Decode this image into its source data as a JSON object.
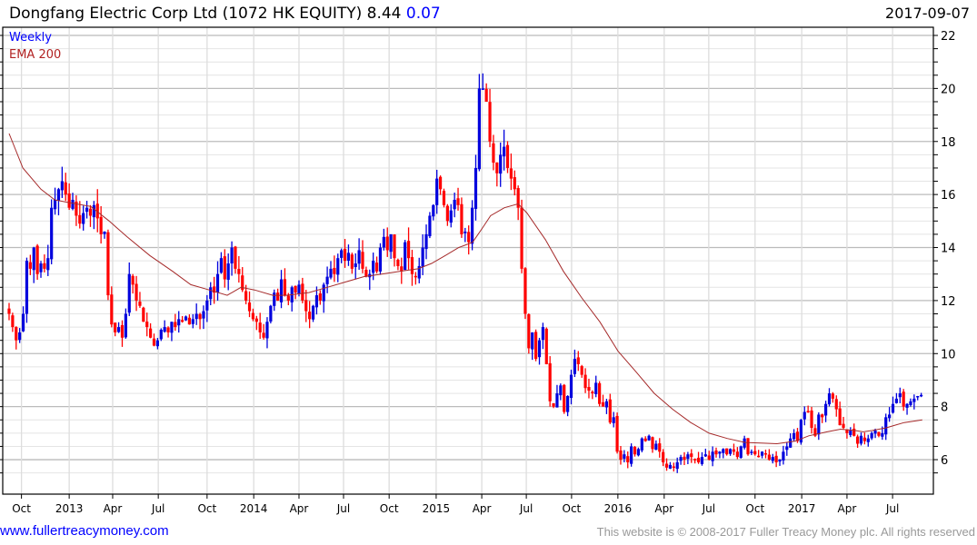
{
  "header": {
    "title": "Dongfang Electric Corp Ltd (1072 HK EQUITY) 8.44",
    "change": "0.07",
    "date": "2017-09-07"
  },
  "footer": {
    "link": "www.fullertreacymoney.com",
    "copyright": "This website is © 2008-2017 Fuller Treacy Money plc. All rights reserved"
  },
  "colors": {
    "up": "#0000dd",
    "down": "#ff0000",
    "ema": "#a52a2a",
    "legend_weekly": "#0000ff",
    "legend_ema": "#b22222"
  },
  "chart_data": {
    "type": "candlestick",
    "title": "Dongfang Electric Corp Ltd (1072 HK EQUITY)",
    "legend": [
      "Weekly",
      "EMA 200"
    ],
    "legend_placement": "top-left",
    "ylim": [
      5,
      22.3
    ],
    "yticks": [
      6,
      8,
      10,
      12,
      14,
      16,
      18,
      20,
      22
    ],
    "xtick_labels": [
      {
        "week": 3.5,
        "label": "Oct"
      },
      {
        "week": 17,
        "label": "2013"
      },
      {
        "week": 29.3,
        "label": "Apr"
      },
      {
        "week": 42.2,
        "label": "Jul"
      },
      {
        "week": 56,
        "label": "Oct"
      },
      {
        "week": 69.2,
        "label": "2014"
      },
      {
        "week": 82,
        "label": "Apr"
      },
      {
        "week": 94.6,
        "label": "Jul"
      },
      {
        "week": 107.5,
        "label": "Oct"
      },
      {
        "week": 120.8,
        "label": "2015"
      },
      {
        "week": 133.7,
        "label": "Apr"
      },
      {
        "week": 146.3,
        "label": "Jul"
      },
      {
        "week": 159.1,
        "label": "Oct"
      },
      {
        "week": 172.2,
        "label": "2016"
      },
      {
        "week": 185.3,
        "label": "Apr"
      },
      {
        "week": 197.9,
        "label": "Jul"
      },
      {
        "week": 211,
        "label": "Oct"
      },
      {
        "week": 224.2,
        "label": "2017"
      },
      {
        "week": 237,
        "label": "Apr"
      },
      {
        "week": 249.9,
        "label": "Jul"
      }
    ],
    "weekly_close": [
      11.5,
      11.0,
      10.5,
      10.8,
      11.5,
      13.5,
      13.2,
      14.0,
      13.0,
      13.4,
      13.2,
      13.6,
      15.5,
      15.8,
      16.2,
      16.5,
      16.0,
      15.5,
      15.8,
      15.2,
      14.9,
      15.3,
      15.5,
      15.2,
      15.6,
      15.1,
      14.5,
      14.6,
      12.2,
      11.1,
      10.8,
      11.0,
      10.6,
      11.5,
      13.0,
      12.6,
      12.0,
      11.8,
      11.2,
      11.0,
      10.6,
      10.3,
      10.5,
      10.9,
      11.0,
      10.8,
      11.2,
      11.0,
      11.3,
      11.2,
      11.4,
      11.1,
      11.3,
      11.5,
      11.3,
      11.6,
      12.0,
      12.5,
      12.3,
      13.0,
      13.6,
      12.8,
      13.4,
      14.0,
      13.2,
      13.0,
      12.4,
      12.0,
      11.6,
      11.3,
      11.2,
      10.8,
      10.6,
      11.2,
      11.8,
      12.3,
      12.0,
      12.8,
      12.2,
      12.0,
      12.5,
      12.3,
      12.6,
      12.0,
      11.6,
      11.3,
      11.8,
      12.2,
      12.0,
      12.6,
      12.9,
      13.2,
      13.0,
      13.6,
      13.9,
      13.5,
      13.8,
      13.2,
      13.4,
      13.9,
      13.2,
      12.9,
      13.0,
      13.5,
      13.1,
      14.0,
      14.4,
      13.9,
      14.5,
      13.6,
      13.3,
      13.1,
      14.2,
      13.6,
      13.0,
      12.9,
      13.3,
      14.0,
      14.5,
      15.2,
      15.6,
      16.6,
      16.2,
      15.6,
      15.0,
      15.4,
      15.8,
      15.6,
      14.5,
      14.6,
      14.2,
      15.5,
      17.0,
      20.0,
      20.0,
      19.5,
      18.0,
      17.2,
      16.8,
      17.5,
      17.8,
      17.0,
      16.6,
      16.2,
      15.5,
      13.2,
      11.5,
      10.2,
      10.8,
      9.8,
      10.5,
      11.0,
      9.6,
      8.2,
      8.0,
      8.5,
      8.8,
      7.8,
      8.4,
      9.2,
      9.8,
      9.6,
      9.2,
      8.7,
      8.6,
      8.5,
      8.9,
      8.1,
      8.0,
      8.2,
      7.4,
      7.6,
      6.3,
      6.0,
      6.2,
      5.9,
      6.5,
      6.2,
      6.4,
      6.8,
      6.7,
      6.9,
      6.4,
      6.6,
      6.3,
      5.9,
      5.7,
      5.8,
      5.7,
      5.9,
      6.1,
      6.0,
      6.2,
      6.1,
      6.0,
      5.9,
      6.1,
      6.2,
      6.0,
      6.3,
      6.2,
      6.3,
      6.4,
      6.2,
      6.4,
      6.3,
      6.1,
      6.5,
      6.8,
      6.2,
      6.3,
      6.2,
      6.1,
      6.3,
      6.2,
      6.0,
      6.1,
      5.9,
      6.0,
      6.3,
      6.5,
      6.8,
      7.0,
      6.7,
      7.5,
      7.8,
      7.8,
      7.2,
      6.9,
      7.7,
      7.6,
      8.1,
      8.5,
      8.3,
      7.9,
      7.3,
      7.2,
      7.0,
      7.1,
      6.9,
      6.6,
      6.9,
      6.7,
      6.8,
      7.0,
      7.1,
      6.9,
      7.0,
      7.6,
      7.7,
      8.1,
      8.3,
      8.5,
      8.0,
      8.1,
      8.2,
      8.3,
      8.4,
      8.44
    ],
    "ema200": [
      [
        0,
        18.3
      ],
      [
        3.9,
        17.0
      ],
      [
        9,
        16.2
      ],
      [
        12.9,
        15.8
      ],
      [
        16.7,
        15.7
      ],
      [
        23.1,
        15.55
      ],
      [
        28.3,
        15.0
      ],
      [
        33.4,
        14.4
      ],
      [
        39.8,
        13.7
      ],
      [
        46.3,
        13.1
      ],
      [
        51.4,
        12.6
      ],
      [
        56.6,
        12.4
      ],
      [
        61.7,
        12.2
      ],
      [
        65.6,
        12.5
      ],
      [
        69.4,
        12.4
      ],
      [
        74.6,
        12.2
      ],
      [
        78.4,
        12.2
      ],
      [
        84.8,
        12.3
      ],
      [
        90,
        12.5
      ],
      [
        95.1,
        12.7
      ],
      [
        100.3,
        12.9
      ],
      [
        105.4,
        13.0
      ],
      [
        110.5,
        13.1
      ],
      [
        115.7,
        13.2
      ],
      [
        119.5,
        13.4
      ],
      [
        123.4,
        13.7
      ],
      [
        127.2,
        14.0
      ],
      [
        131.1,
        14.2
      ],
      [
        133.7,
        14.7
      ],
      [
        136.2,
        15.2
      ],
      [
        140.1,
        15.5
      ],
      [
        144,
        15.65
      ],
      [
        146.5,
        15.3
      ],
      [
        151.7,
        14.3
      ],
      [
        156.8,
        13.1
      ],
      [
        162,
        12.1
      ],
      [
        167.1,
        11.2
      ],
      [
        172.2,
        10.1
      ],
      [
        177.4,
        9.3
      ],
      [
        182.5,
        8.5
      ],
      [
        187.7,
        7.9
      ],
      [
        192.8,
        7.4
      ],
      [
        198,
        7.0
      ],
      [
        203.1,
        6.8
      ],
      [
        208.2,
        6.65
      ],
      [
        213.4,
        6.62
      ],
      [
        217.2,
        6.6
      ],
      [
        222.4,
        6.7
      ],
      [
        226.2,
        6.9
      ],
      [
        231.4,
        7.05
      ],
      [
        235.2,
        7.15
      ],
      [
        239.1,
        7.1
      ],
      [
        241.6,
        7.05
      ],
      [
        244.2,
        7.1
      ],
      [
        248.1,
        7.2
      ],
      [
        250.6,
        7.3
      ],
      [
        253.2,
        7.4
      ],
      [
        258.3,
        7.5
      ]
    ]
  }
}
